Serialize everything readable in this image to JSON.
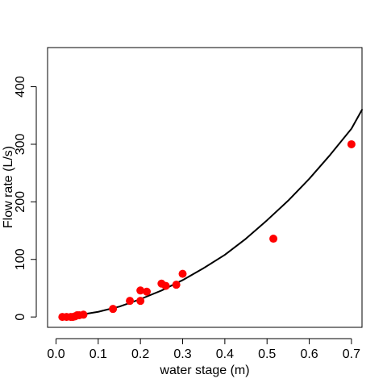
{
  "chart_data": {
    "type": "scatter",
    "title": "",
    "xlabel": "water stage (m)",
    "ylabel": "Flow rate (L/s)",
    "xlim": [
      -0.02,
      0.725
    ],
    "ylim": [
      -18,
      468
    ],
    "x_ticks": [
      0.0,
      0.1,
      0.2,
      0.3,
      0.4,
      0.5,
      0.6,
      0.7
    ],
    "x_tick_labels": [
      "0.0",
      "0.1",
      "0.2",
      "0.3",
      "0.4",
      "0.5",
      "0.6",
      "0.7"
    ],
    "y_ticks": [
      0,
      100,
      200,
      300,
      400
    ],
    "y_tick_labels": [
      "0",
      "100",
      "200",
      "300",
      "400"
    ],
    "grid": false,
    "legend": "none",
    "series": [
      {
        "type": "scatter",
        "color": "#ff0000",
        "x": [
          0.015,
          0.025,
          0.035,
          0.04,
          0.045,
          0.05,
          0.055,
          0.065,
          0.135,
          0.175,
          0.2,
          0.2,
          0.215,
          0.25,
          0.26,
          0.285,
          0.3,
          0.515,
          0.7
        ],
        "y": [
          0,
          0,
          0,
          0,
          1,
          3,
          3,
          4,
          14,
          28,
          28,
          46,
          44,
          58,
          54,
          56,
          75,
          136,
          300
        ]
      },
      {
        "type": "line",
        "color": "#000000",
        "x": [
          0.015,
          0.05,
          0.1,
          0.15,
          0.2,
          0.25,
          0.3,
          0.35,
          0.4,
          0.45,
          0.5,
          0.55,
          0.6,
          0.65,
          0.7,
          0.725
        ],
        "y": [
          0,
          3,
          9,
          18,
          31,
          46,
          64,
          85,
          108,
          136,
          168,
          202,
          240,
          282,
          327,
          360
        ]
      }
    ]
  }
}
